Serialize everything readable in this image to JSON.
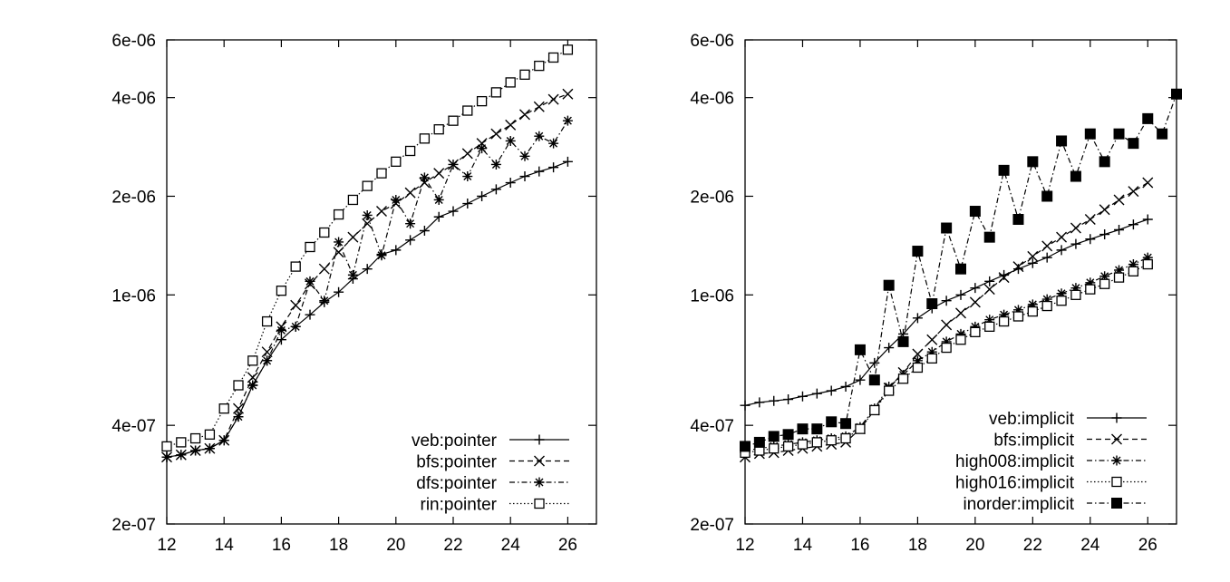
{
  "chart_data": [
    {
      "type": "line",
      "title": "",
      "xlabel": "",
      "ylabel": "",
      "xlim": [
        12,
        27
      ],
      "ylim": [
        2e-07,
        6e-06
      ],
      "yscale": "log",
      "x_ticks": [
        "12",
        "14",
        "16",
        "18",
        "20",
        "22",
        "24",
        "26"
      ],
      "y_ticks": [
        "2e-07",
        "4e-07",
        "1e-06",
        "2e-06",
        "4e-06",
        "6e-06"
      ],
      "legend_position": "bottom-right",
      "grid": false,
      "series": [
        {
          "name": "veb:pointer",
          "marker": "plus",
          "dash": "solid",
          "x": [
            12,
            12.5,
            13,
            13.5,
            14,
            14.5,
            15,
            15.5,
            16,
            16.5,
            17,
            17.5,
            18,
            18.5,
            19,
            19.5,
            20,
            20.5,
            21,
            21.5,
            22,
            22.5,
            23,
            23.5,
            24,
            24.5,
            25,
            25.5,
            26
          ],
          "y": [
            3.2e-07,
            3.25e-07,
            3.35e-07,
            3.4e-07,
            3.6e-07,
            4.25e-07,
            5.3e-07,
            6.3e-07,
            7.3e-07,
            8e-07,
            8.7e-07,
            9.5e-07,
            1.02e-06,
            1.12e-06,
            1.2e-06,
            1.33e-06,
            1.37e-06,
            1.47e-06,
            1.57e-06,
            1.73e-06,
            1.8e-06,
            1.9e-06,
            2e-06,
            2.1e-06,
            2.2e-06,
            2.3e-06,
            2.38e-06,
            2.45e-06,
            2.55e-06
          ]
        },
        {
          "name": "bfs:pointer",
          "marker": "x",
          "dash": "dashed",
          "x": [
            12,
            12.5,
            13,
            13.5,
            14,
            14.5,
            15,
            15.5,
            16,
            16.5,
            17,
            17.5,
            18,
            18.5,
            19,
            19.5,
            20,
            20.5,
            21,
            21.5,
            22,
            22.5,
            23,
            23.5,
            24,
            24.5,
            25,
            25.5,
            26
          ],
          "y": [
            3.2e-07,
            3.25e-07,
            3.35e-07,
            3.4e-07,
            3.6e-07,
            4.5e-07,
            5.6e-07,
            6.7e-07,
            8e-07,
            9.3e-07,
            1.08e-06,
            1.2e-06,
            1.35e-06,
            1.5e-06,
            1.65e-06,
            1.8e-06,
            1.9e-06,
            2.05e-06,
            2.2e-06,
            2.35e-06,
            2.5e-06,
            2.7e-06,
            2.9e-06,
            3.1e-06,
            3.3e-06,
            3.55e-06,
            3.75e-06,
            3.95e-06,
            4.1e-06
          ]
        },
        {
          "name": "dfs:pointer",
          "marker": "star",
          "dash": "dashdot",
          "x": [
            12,
            12.5,
            13,
            13.5,
            14,
            14.5,
            15,
            15.5,
            16,
            16.5,
            17,
            17.5,
            18,
            18.5,
            19,
            19.5,
            20,
            20.5,
            21,
            21.5,
            22,
            22.5,
            23,
            23.5,
            24,
            24.5,
            25,
            25.5,
            26
          ],
          "y": [
            3.2e-07,
            3.25e-07,
            3.35e-07,
            3.4e-07,
            3.6e-07,
            4.25e-07,
            5.3e-07,
            6.3e-07,
            7.8e-07,
            8e-07,
            1.1e-06,
            9.6e-07,
            1.45e-06,
            1.15e-06,
            1.75e-06,
            1.32e-06,
            1.95e-06,
            1.65e-06,
            2.28e-06,
            1.95e-06,
            2.5e-06,
            2.3e-06,
            2.8e-06,
            2.5e-06,
            2.95e-06,
            2.65e-06,
            3.05e-06,
            2.9e-06,
            3.4e-06
          ]
        },
        {
          "name": "rin:pointer",
          "marker": "square",
          "dash": "dotted",
          "x": [
            12,
            12.5,
            13,
            13.5,
            14,
            14.5,
            15,
            15.5,
            16,
            16.5,
            17,
            17.5,
            18,
            18.5,
            19,
            19.5,
            20,
            20.5,
            21,
            21.5,
            22,
            22.5,
            23,
            23.5,
            24,
            24.5,
            25,
            25.5,
            26
          ],
          "y": [
            3.45e-07,
            3.55e-07,
            3.65e-07,
            3.75e-07,
            4.5e-07,
            5.3e-07,
            6.3e-07,
            8.3e-07,
            1.03e-06,
            1.22e-06,
            1.4e-06,
            1.55e-06,
            1.76e-06,
            1.95e-06,
            2.15e-06,
            2.35e-06,
            2.55e-06,
            2.75e-06,
            3e-06,
            3.2e-06,
            3.4e-06,
            3.65e-06,
            3.9e-06,
            4.15e-06,
            4.45e-06,
            4.7e-06,
            5e-06,
            5.3e-06,
            5.6e-06
          ]
        }
      ]
    },
    {
      "type": "line",
      "title": "",
      "xlabel": "",
      "ylabel": "",
      "xlim": [
        12,
        27
      ],
      "ylim": [
        2e-07,
        6e-06
      ],
      "yscale": "log",
      "x_ticks": [
        "12",
        "14",
        "16",
        "18",
        "20",
        "22",
        "24",
        "26"
      ],
      "y_ticks": [
        "2e-07",
        "4e-07",
        "1e-06",
        "2e-06",
        "4e-06",
        "6e-06"
      ],
      "legend_position": "bottom-right",
      "grid": false,
      "series": [
        {
          "name": "veb:implicit",
          "marker": "plus",
          "dash": "solid",
          "x": [
            12,
            12.5,
            13,
            13.5,
            14,
            14.5,
            15,
            15.5,
            16,
            16.5,
            17,
            17.5,
            18,
            18.5,
            19,
            19.5,
            20,
            20.5,
            21,
            21.5,
            22,
            22.5,
            23,
            23.5,
            24,
            24.5,
            25,
            25.5,
            26
          ],
          "y": [
            4.6e-07,
            4.7e-07,
            4.75e-07,
            4.8e-07,
            4.9e-07,
            5e-07,
            5.1e-07,
            5.25e-07,
            5.5e-07,
            6.2e-07,
            6.9e-07,
            7.6e-07,
            8.5e-07,
            9.1e-07,
            9.6e-07,
            1e-06,
            1.05e-06,
            1.1e-06,
            1.15e-06,
            1.2e-06,
            1.25e-06,
            1.3e-06,
            1.37e-06,
            1.43e-06,
            1.48e-06,
            1.53e-06,
            1.58e-06,
            1.64e-06,
            1.7e-06
          ]
        },
        {
          "name": "bfs:implicit",
          "marker": "x",
          "dash": "dashed",
          "x": [
            12,
            12.5,
            13,
            13.5,
            14,
            14.5,
            15,
            15.5,
            16,
            16.5,
            17,
            17.5,
            18,
            18.5,
            19,
            19.5,
            20,
            20.5,
            21,
            21.5,
            22,
            22.5,
            23,
            23.5,
            24,
            24.5,
            25,
            25.5,
            26
          ],
          "y": [
            3.2e-07,
            3.28e-07,
            3.3e-07,
            3.35e-07,
            3.4e-07,
            3.45e-07,
            3.5e-07,
            3.55e-07,
            3.9e-07,
            4.45e-07,
            5.2e-07,
            5.8e-07,
            6.6e-07,
            7.3e-07,
            8.1e-07,
            8.8e-07,
            9.5e-07,
            1.04e-06,
            1.13e-06,
            1.22e-06,
            1.31e-06,
            1.41e-06,
            1.5e-06,
            1.6e-06,
            1.7e-06,
            1.82e-06,
            1.95e-06,
            2.07e-06,
            2.2e-06
          ]
        },
        {
          "name": "high008:implicit",
          "marker": "star",
          "dash": "dashdot",
          "x": [
            12,
            12.5,
            13,
            13.5,
            14,
            14.5,
            15,
            15.5,
            16,
            16.5,
            17,
            17.5,
            18,
            18.5,
            19,
            19.5,
            20,
            20.5,
            21,
            21.5,
            22,
            22.5,
            23,
            23.5,
            24,
            24.5,
            25,
            25.5,
            26
          ],
          "y": [
            3.35e-07,
            3.4e-07,
            3.45e-07,
            3.5e-07,
            3.55e-07,
            3.6e-07,
            3.65e-07,
            3.7e-07,
            3.95e-07,
            4.5e-07,
            5.25e-07,
            5.7e-07,
            6.3e-07,
            6.7e-07,
            7.2e-07,
            7.6e-07,
            8e-07,
            8.4e-07,
            8.7e-07,
            9e-07,
            9.35e-07,
            9.7e-07,
            1.01e-06,
            1.05e-06,
            1.09e-06,
            1.14e-06,
            1.19e-06,
            1.24e-06,
            1.3e-06
          ]
        },
        {
          "name": "high016:implicit",
          "marker": "square",
          "dash": "dotted",
          "x": [
            12,
            12.5,
            13,
            13.5,
            14,
            14.5,
            15,
            15.5,
            16,
            16.5,
            17,
            17.5,
            18,
            18.5,
            19,
            19.5,
            20,
            20.5,
            21,
            21.5,
            22,
            22.5,
            23,
            23.5,
            24,
            24.5,
            25,
            25.5,
            26
          ],
          "y": [
            3.3e-07,
            3.35e-07,
            3.4e-07,
            3.45e-07,
            3.5e-07,
            3.55e-07,
            3.6e-07,
            3.65e-07,
            3.9e-07,
            4.45e-07,
            5.1e-07,
            5.55e-07,
            6e-07,
            6.4e-07,
            6.9e-07,
            7.3e-07,
            7.7e-07,
            8e-07,
            8.3e-07,
            8.6e-07,
            8.9e-07,
            9.25e-07,
            9.6e-07,
            1e-06,
            1.04e-06,
            1.08e-06,
            1.13e-06,
            1.18e-06,
            1.24e-06
          ]
        },
        {
          "name": "inorder:implicit",
          "marker": "filled-square",
          "dash": "dashdot",
          "x": [
            12,
            12.5,
            13,
            13.5,
            14,
            14.5,
            15,
            15.5,
            16,
            16.5,
            17,
            17.5,
            18,
            18.5,
            19,
            19.5,
            20,
            20.5,
            21,
            21.5,
            22,
            22.5,
            23,
            23.5,
            24,
            24.5,
            25,
            25.5,
            26,
            26.5,
            27
          ],
          "y": [
            3.45e-07,
            3.55e-07,
            3.7e-07,
            3.75e-07,
            3.9e-07,
            3.9e-07,
            4.1e-07,
            4.05e-07,
            6.8e-07,
            5.5e-07,
            1.07e-06,
            7.2e-07,
            1.36e-06,
            9.4e-07,
            1.6e-06,
            1.2e-06,
            1.8e-06,
            1.5e-06,
            2.4e-06,
            1.7e-06,
            2.55e-06,
            2e-06,
            2.95e-06,
            2.3e-06,
            3.1e-06,
            2.55e-06,
            3.1e-06,
            2.9e-06,
            3.45e-06,
            3.1e-06,
            4.1e-06
          ]
        }
      ]
    }
  ]
}
